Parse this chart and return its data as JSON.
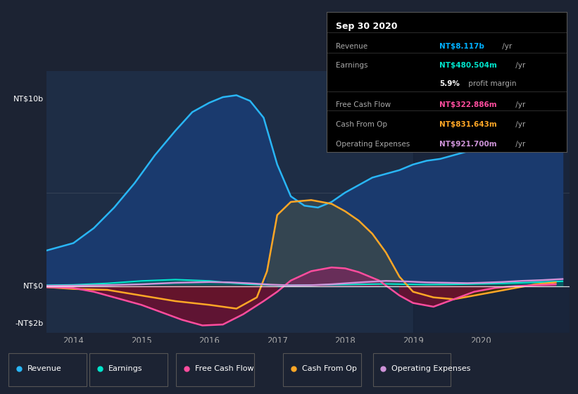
{
  "bg_color": "#1c2333",
  "chart_bg": "#1e2d45",
  "ylim": [
    -2.5,
    11.5
  ],
  "xlim": [
    2013.6,
    2021.3
  ],
  "xticks": [
    2014,
    2015,
    2016,
    2017,
    2018,
    2019,
    2020
  ],
  "shaded_region_x": 2019.0,
  "info_box_title": "Sep 30 2020",
  "info_rows": [
    {
      "label": "Revenue",
      "value": "NT$8.117b",
      "suffix": " /yr",
      "value_color": "#00b0ff"
    },
    {
      "label": "Earnings",
      "value": "NT$480.504m",
      "suffix": " /yr",
      "value_color": "#00e5cc"
    },
    {
      "label": "",
      "value": "5.9%",
      "suffix": " profit margin",
      "value_color": "#ffffff"
    },
    {
      "label": "Free Cash Flow",
      "value": "NT$322.886m",
      "suffix": " /yr",
      "value_color": "#ff4d9e"
    },
    {
      "label": "Cash From Op",
      "value": "NT$831.643m",
      "suffix": " /yr",
      "value_color": "#ffa726"
    },
    {
      "label": "Operating Expenses",
      "value": "NT$921.700m",
      "suffix": " /yr",
      "value_color": "#ce93d8"
    }
  ],
  "revenue_x": [
    2013.6,
    2013.8,
    2014.0,
    2014.3,
    2014.6,
    2014.9,
    2015.2,
    2015.5,
    2015.75,
    2016.0,
    2016.2,
    2016.4,
    2016.6,
    2016.8,
    2017.0,
    2017.2,
    2017.4,
    2017.6,
    2017.8,
    2018.0,
    2018.2,
    2018.4,
    2018.6,
    2018.8,
    2019.0,
    2019.2,
    2019.4,
    2019.6,
    2019.8,
    2020.0,
    2020.2,
    2020.4,
    2020.6,
    2020.8,
    2021.0,
    2021.2
  ],
  "revenue_y": [
    1.9,
    2.1,
    2.3,
    3.1,
    4.2,
    5.5,
    7.0,
    8.3,
    9.3,
    9.8,
    10.1,
    10.2,
    9.9,
    9.0,
    6.5,
    4.8,
    4.3,
    4.2,
    4.5,
    5.0,
    5.4,
    5.8,
    6.0,
    6.2,
    6.5,
    6.7,
    6.8,
    7.0,
    7.2,
    7.4,
    7.6,
    7.9,
    8.3,
    9.0,
    9.8,
    10.5
  ],
  "earnings_x": [
    2013.6,
    2014.0,
    2014.5,
    2015.0,
    2015.5,
    2016.0,
    2016.3,
    2016.6,
    2016.9,
    2017.2,
    2017.5,
    2017.8,
    2018.0,
    2018.3,
    2018.6,
    2018.9,
    2019.2,
    2019.5,
    2019.8,
    2020.0,
    2020.3,
    2020.6,
    2020.9,
    2021.2
  ],
  "earnings_y": [
    0.05,
    0.07,
    0.15,
    0.28,
    0.35,
    0.28,
    0.18,
    0.1,
    0.05,
    0.05,
    0.06,
    0.07,
    0.08,
    0.1,
    0.12,
    0.1,
    0.08,
    0.09,
    0.11,
    0.13,
    0.15,
    0.18,
    0.22,
    0.26
  ],
  "fcf_x": [
    2013.6,
    2014.0,
    2014.3,
    2014.6,
    2015.0,
    2015.3,
    2015.6,
    2015.9,
    2016.2,
    2016.5,
    2016.8,
    2017.0,
    2017.2,
    2017.5,
    2017.8,
    2018.0,
    2018.2,
    2018.5,
    2018.8,
    2019.0,
    2019.3,
    2019.6,
    2019.9,
    2020.2,
    2020.5,
    2020.8,
    2021.1
  ],
  "fcf_y": [
    -0.05,
    -0.1,
    -0.3,
    -0.6,
    -1.0,
    -1.4,
    -1.8,
    -2.1,
    -2.05,
    -1.5,
    -0.8,
    -0.3,
    0.3,
    0.8,
    1.0,
    0.95,
    0.75,
    0.3,
    -0.5,
    -0.9,
    -1.1,
    -0.7,
    -0.3,
    -0.1,
    0.0,
    0.05,
    0.1
  ],
  "cashop_x": [
    2013.6,
    2014.0,
    2014.5,
    2015.0,
    2015.5,
    2016.0,
    2016.4,
    2016.7,
    2016.85,
    2017.0,
    2017.2,
    2017.5,
    2017.8,
    2018.0,
    2018.2,
    2018.4,
    2018.6,
    2018.8,
    2019.0,
    2019.3,
    2019.6,
    2019.9,
    2020.2,
    2020.5,
    2020.8,
    2021.1
  ],
  "cashop_y": [
    -0.05,
    -0.15,
    -0.2,
    -0.5,
    -0.8,
    -1.0,
    -1.2,
    -0.6,
    0.8,
    3.8,
    4.5,
    4.6,
    4.4,
    4.0,
    3.5,
    2.8,
    1.8,
    0.5,
    -0.3,
    -0.6,
    -0.7,
    -0.5,
    -0.3,
    -0.1,
    0.1,
    0.2
  ],
  "opex_x": [
    2013.6,
    2014.0,
    2014.5,
    2015.0,
    2015.5,
    2016.0,
    2016.3,
    2016.6,
    2016.9,
    2017.2,
    2017.5,
    2017.8,
    2018.0,
    2018.3,
    2018.6,
    2018.9,
    2019.2,
    2019.5,
    2019.8,
    2020.0,
    2020.3,
    2020.6,
    2020.9,
    2021.2
  ],
  "opex_y": [
    0.02,
    0.03,
    0.05,
    0.1,
    0.18,
    0.22,
    0.2,
    0.15,
    0.08,
    0.04,
    0.05,
    0.1,
    0.15,
    0.22,
    0.28,
    0.25,
    0.2,
    0.18,
    0.16,
    0.18,
    0.22,
    0.28,
    0.32,
    0.38
  ],
  "legend": [
    {
      "label": "Revenue",
      "color": "#29b6f6"
    },
    {
      "label": "Earnings",
      "color": "#00e5cc"
    },
    {
      "label": "Free Cash Flow",
      "color": "#ff4d9e"
    },
    {
      "label": "Cash From Op",
      "color": "#ffa726"
    },
    {
      "label": "Operating Expenses",
      "color": "#ce93d8"
    }
  ]
}
